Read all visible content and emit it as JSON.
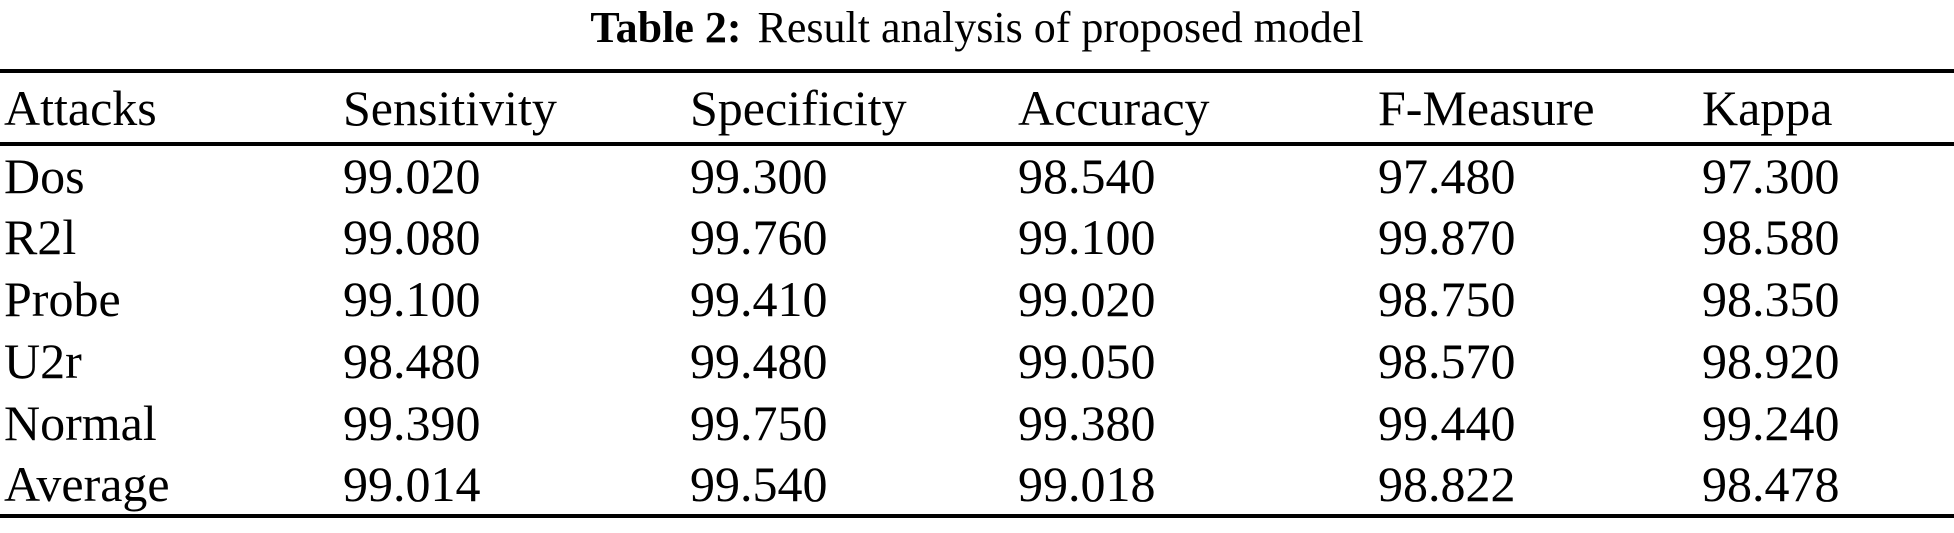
{
  "caption": {
    "label": "Table 2:",
    "text": "Result analysis of proposed model"
  },
  "table": {
    "columns": [
      "Attacks",
      "Sensitivity",
      "Specificity",
      "Accuracy",
      "F-Measure",
      "Kappa"
    ],
    "rows": [
      {
        "attack": "Dos",
        "values": [
          "99.020",
          "99.300",
          "98.540",
          "97.480",
          "97.300"
        ]
      },
      {
        "attack": "R2l",
        "values": [
          "99.080",
          "99.760",
          "99.100",
          "99.870",
          "98.580"
        ]
      },
      {
        "attack": "Probe",
        "values": [
          "99.100",
          "99.410",
          "99.020",
          "98.750",
          "98.350"
        ]
      },
      {
        "attack": "U2r",
        "values": [
          "98.480",
          "99.480",
          "99.050",
          "98.570",
          "98.920"
        ]
      },
      {
        "attack": "Normal",
        "values": [
          "99.390",
          "99.750",
          "99.380",
          "99.440",
          "99.240"
        ]
      },
      {
        "attack": "Average",
        "values": [
          "99.014",
          "99.540",
          "99.018",
          "98.822",
          "98.478"
        ]
      }
    ]
  },
  "chart_data": {
    "type": "table",
    "title": "Table 2: Result analysis of proposed model",
    "columns": [
      "Attacks",
      "Sensitivity",
      "Specificity",
      "Accuracy",
      "F-Measure",
      "Kappa"
    ],
    "rows": [
      [
        "Dos",
        99.02,
        99.3,
        98.54,
        97.48,
        97.3
      ],
      [
        "R2l",
        99.08,
        99.76,
        99.1,
        99.87,
        98.58
      ],
      [
        "Probe",
        99.1,
        99.41,
        99.02,
        98.75,
        98.35
      ],
      [
        "U2r",
        98.48,
        99.48,
        99.05,
        98.57,
        98.92
      ],
      [
        "Normal",
        99.39,
        99.75,
        99.38,
        99.44,
        99.24
      ],
      [
        "Average",
        99.014,
        99.54,
        99.018,
        98.822,
        98.478
      ]
    ]
  }
}
